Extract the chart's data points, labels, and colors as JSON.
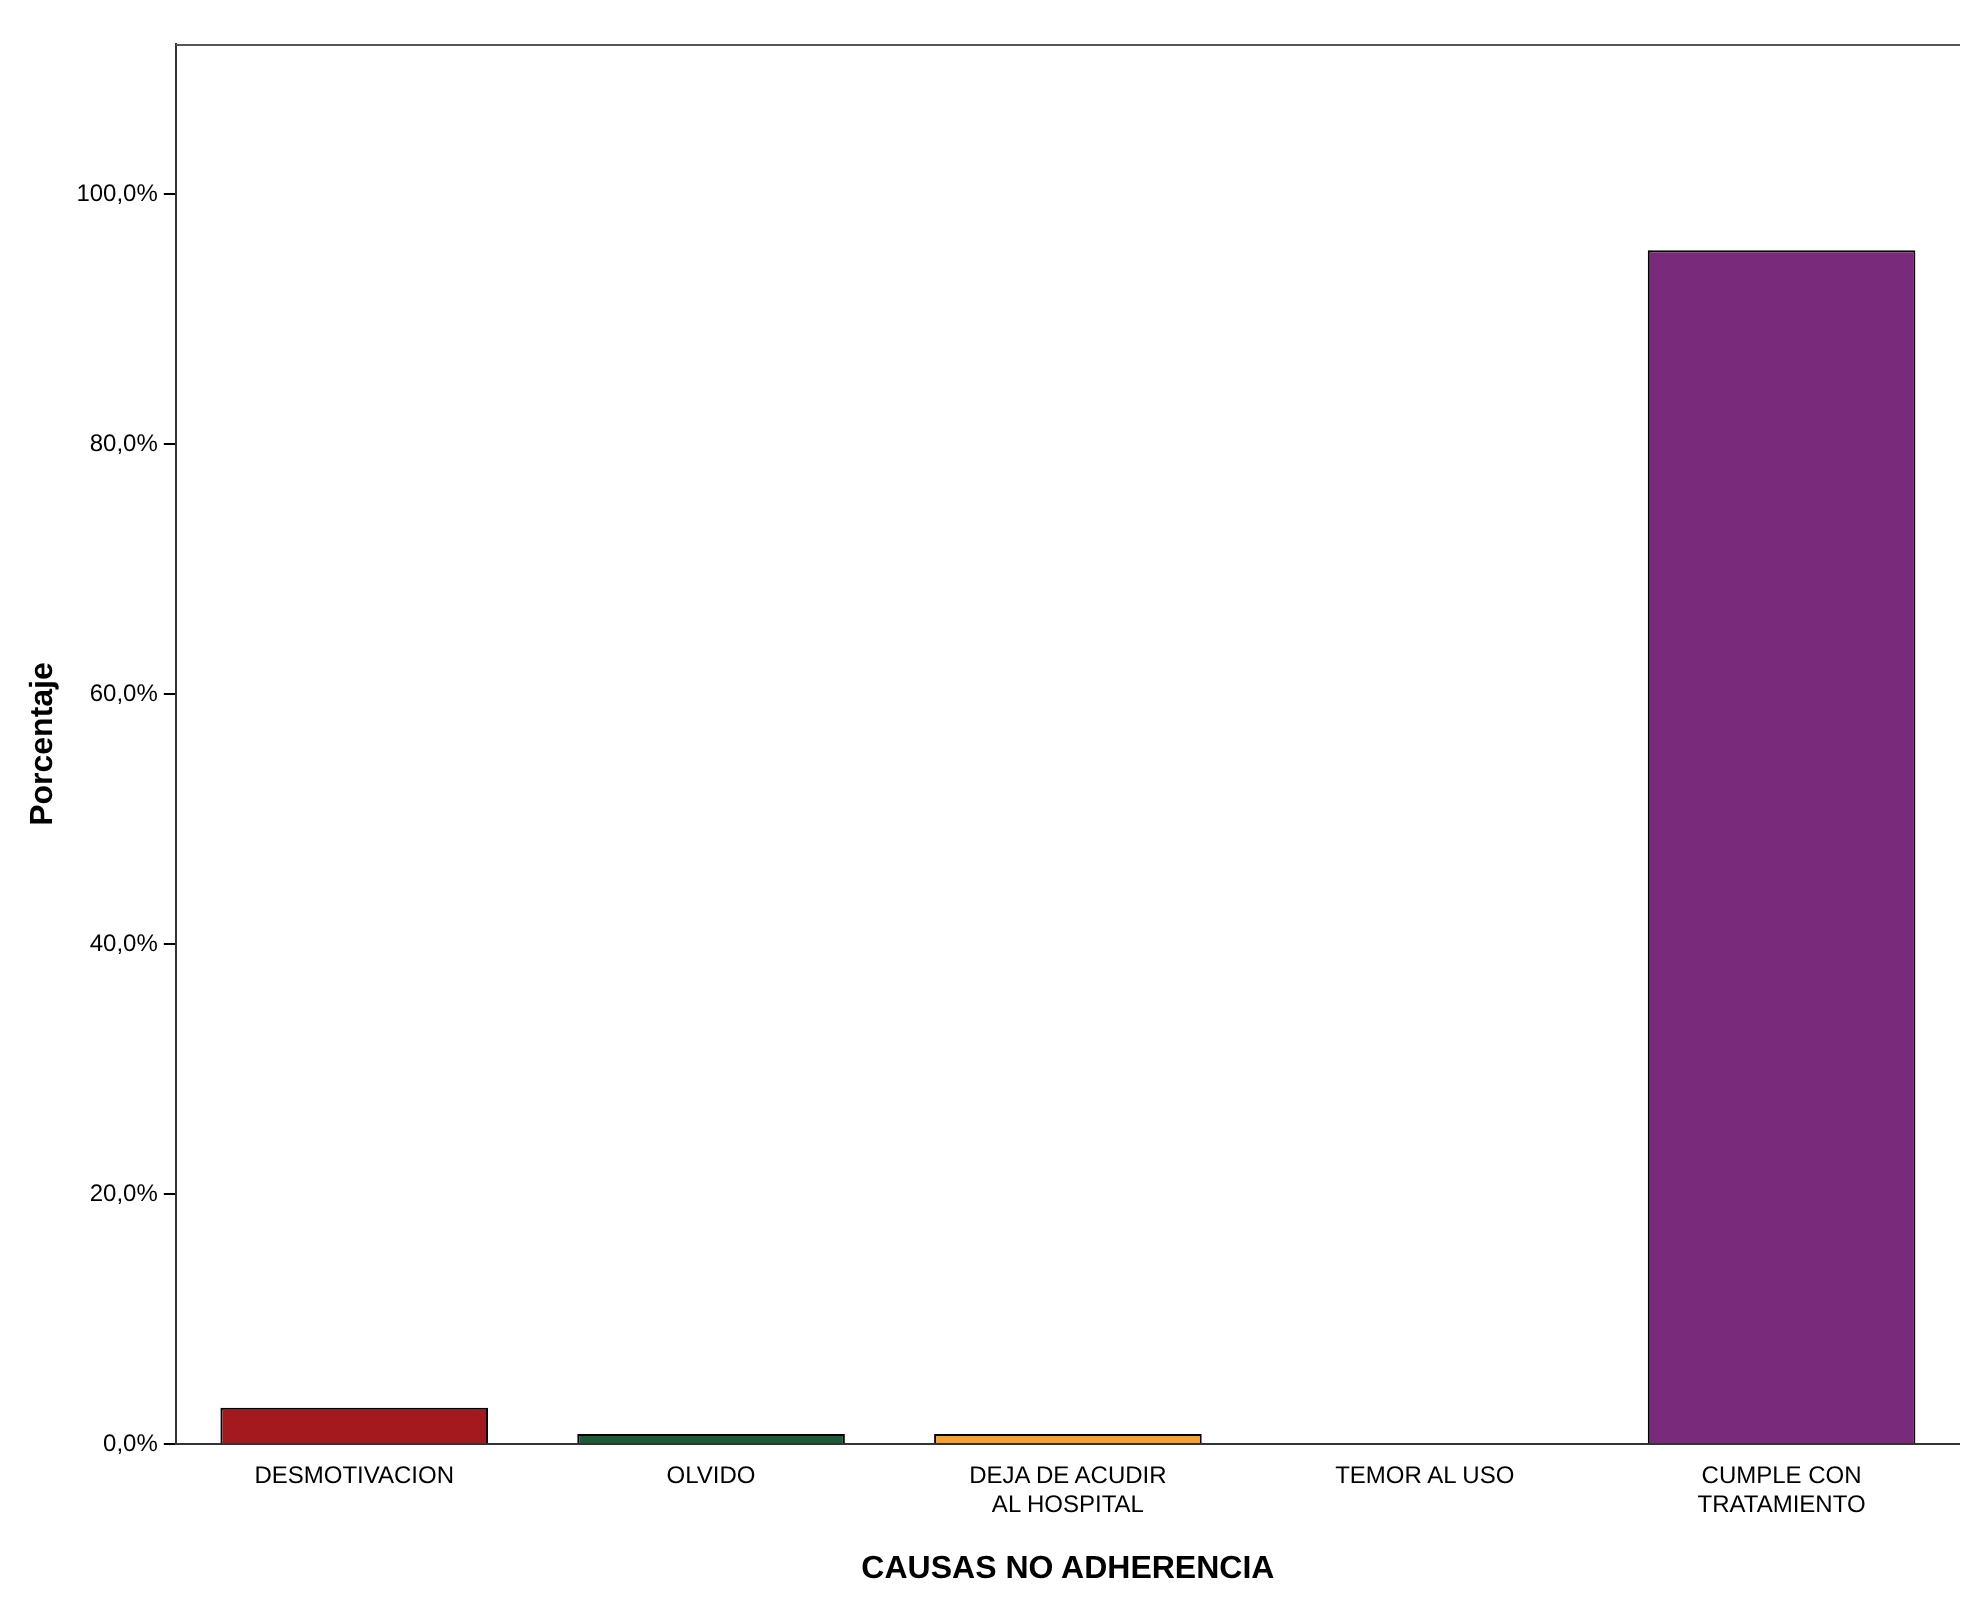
{
  "chart_data": {
    "type": "bar",
    "xlabel": "CAUSAS NO ADHERENCIA",
    "ylabel": "Porcentaje",
    "categories": [
      "DESMOTIVACION",
      "OLVIDO",
      "DEJA DE ACUDIR\nAL HOSPITAL",
      "TEMOR AL USO",
      "CUMPLE CON\nTRATAMIENTO"
    ],
    "values": [
      2.9,
      0.8,
      0.8,
      0,
      95.5
    ],
    "colors": [
      "#a3191e",
      "#1a5a35",
      "#f5a031",
      "#3a3a3a",
      "#7a2a7a"
    ],
    "ylim": [
      0,
      112
    ],
    "yticks": [
      {
        "value": 0,
        "label": "0,0%"
      },
      {
        "value": 20,
        "label": "20,0%"
      },
      {
        "value": 40,
        "label": "40,0%"
      },
      {
        "value": 60,
        "label": "60,0%"
      },
      {
        "value": 80,
        "label": "80,0%"
      },
      {
        "value": 100,
        "label": "100,0%"
      }
    ],
    "grid": false,
    "legend": false
  }
}
